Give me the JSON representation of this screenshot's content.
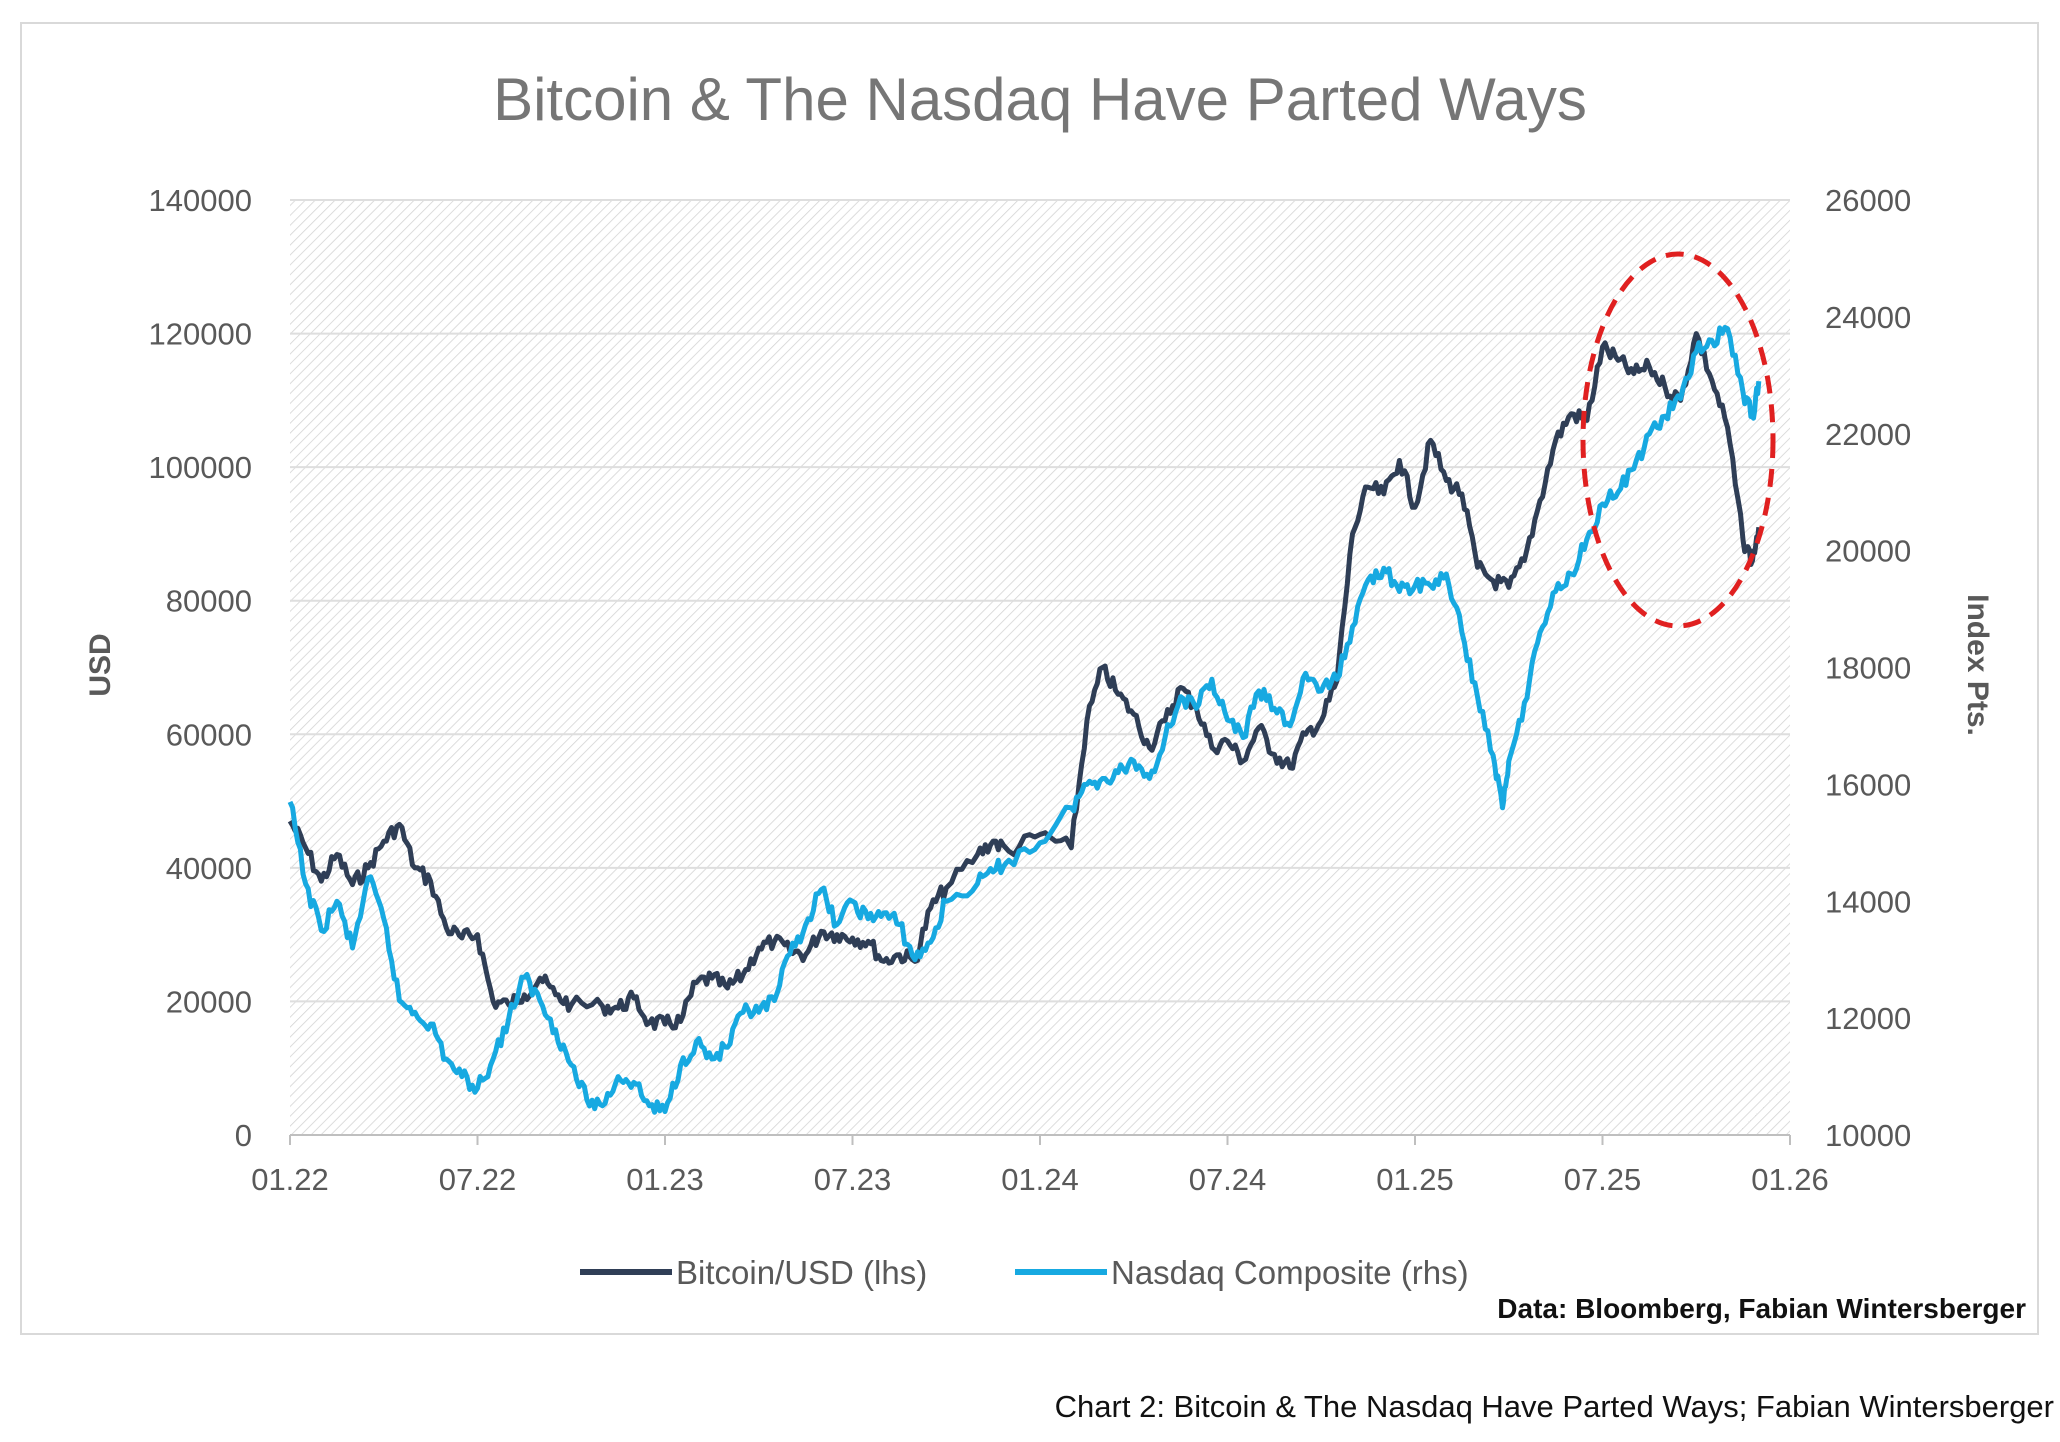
{
  "chart_data": {
    "type": "line",
    "title": "Bitcoin & The Nasdaq Have Parted Ways",
    "xlabel": "",
    "ylabel_left": "USD",
    "ylabel_right": "Index Pts.",
    "ylim_left": [
      0,
      140000
    ],
    "ylim_right": [
      10000,
      26000
    ],
    "yticks_left": [
      "0",
      "20000",
      "40000",
      "60000",
      "80000",
      "100000",
      "120000",
      "140000"
    ],
    "yticks_right": [
      "10000",
      "12000",
      "14000",
      "16000",
      "18000",
      "20000",
      "22000",
      "24000",
      "26000"
    ],
    "xticks": [
      "01.22",
      "07.22",
      "01.23",
      "07.23",
      "01.24",
      "07.24",
      "01.25",
      "07.25",
      "01.26"
    ],
    "xlim_months": [
      0,
      48
    ],
    "x_unit": "months since Jan 2022",
    "grid": true,
    "legend_position": "bottom",
    "source": "Data: Bloomberg, Fabian Wintersberger",
    "annotation": "red dashed ellipse highlighting late-2025 divergence",
    "series": [
      {
        "name": "Bitcoin/USD (lhs)",
        "axis": "left",
        "color": "#2f3e56",
        "points": [
          [
            0,
            47000
          ],
          [
            0.5,
            43000
          ],
          [
            1,
            38000
          ],
          [
            1.5,
            42000
          ],
          [
            2,
            37500
          ],
          [
            2.5,
            40000
          ],
          [
            3,
            44000
          ],
          [
            3.5,
            46500
          ],
          [
            4,
            40000
          ],
          [
            4.5,
            38000
          ],
          [
            5,
            31000
          ],
          [
            5.5,
            29500
          ],
          [
            6,
            30000
          ],
          [
            6.5,
            20000
          ],
          [
            7,
            19500
          ],
          [
            7.5,
            21000
          ],
          [
            8,
            23500
          ],
          [
            8.5,
            21000
          ],
          [
            9,
            19500
          ],
          [
            10,
            19300
          ],
          [
            10.5,
            19000
          ],
          [
            11,
            20500
          ],
          [
            11.5,
            16800
          ],
          [
            12,
            16600
          ],
          [
            12.5,
            17000
          ],
          [
            13,
            22800
          ],
          [
            13.5,
            23500
          ],
          [
            14,
            22000
          ],
          [
            14.5,
            24000
          ],
          [
            15,
            28000
          ],
          [
            15.5,
            29000
          ],
          [
            16,
            27500
          ],
          [
            16.5,
            27000
          ],
          [
            17,
            30500
          ],
          [
            17.5,
            30000
          ],
          [
            18,
            29500
          ],
          [
            18.5,
            29000
          ],
          [
            19,
            26000
          ],
          [
            19.5,
            27000
          ],
          [
            20,
            26000
          ],
          [
            20.5,
            34000
          ],
          [
            21,
            37000
          ],
          [
            22,
            42000
          ],
          [
            22.5,
            44000
          ],
          [
            23,
            42500
          ],
          [
            24,
            45000
          ],
          [
            25,
            43000
          ],
          [
            25.5,
            62000
          ],
          [
            26,
            70000
          ],
          [
            26.5,
            66000
          ],
          [
            27,
            63000
          ],
          [
            27.5,
            58000
          ],
          [
            28,
            62000
          ],
          [
            28.5,
            67000
          ],
          [
            29,
            64000
          ],
          [
            29.5,
            58000
          ],
          [
            30,
            59000
          ],
          [
            30.5,
            56000
          ],
          [
            31,
            61000
          ],
          [
            31.5,
            57000
          ],
          [
            32,
            55000
          ],
          [
            32.5,
            60000
          ],
          [
            33,
            62000
          ],
          [
            33.5,
            68000
          ],
          [
            34,
            90000
          ],
          [
            34.5,
            97000
          ],
          [
            35,
            96000
          ],
          [
            35.5,
            101000
          ],
          [
            36,
            94000
          ],
          [
            36.5,
            104000
          ],
          [
            37,
            98000
          ],
          [
            37.5,
            96000
          ],
          [
            38,
            85000
          ],
          [
            38.5,
            83000
          ],
          [
            39,
            82000
          ],
          [
            39.5,
            86000
          ],
          [
            40,
            95000
          ],
          [
            40.5,
            104000
          ],
          [
            41,
            108000
          ],
          [
            41.5,
            107000
          ],
          [
            42,
            118000
          ],
          [
            42.5,
            116000
          ],
          [
            43,
            114000
          ],
          [
            43.5,
            115000
          ],
          [
            44,
            112000
          ],
          [
            44.5,
            110000
          ],
          [
            45,
            120000
          ],
          [
            45.5,
            113000
          ],
          [
            46,
            106000
          ],
          [
            46.5,
            89000
          ],
          [
            46.8,
            86000
          ],
          [
            47,
            91000
          ]
        ]
      },
      {
        "name": "Nasdaq Composite (rhs)",
        "axis": "right",
        "color": "#17a9e1",
        "points": [
          [
            0,
            15700
          ],
          [
            0.5,
            14300
          ],
          [
            1,
            13500
          ],
          [
            1.5,
            14000
          ],
          [
            2,
            13200
          ],
          [
            2.5,
            14400
          ],
          [
            3,
            13700
          ],
          [
            3.5,
            12300
          ],
          [
            4,
            12100
          ],
          [
            4.5,
            11900
          ],
          [
            5,
            11300
          ],
          [
            5.5,
            11000
          ],
          [
            6,
            10800
          ],
          [
            6.5,
            11300
          ],
          [
            7,
            12000
          ],
          [
            7.5,
            12700
          ],
          [
            8,
            12300
          ],
          [
            8.5,
            11800
          ],
          [
            9,
            11200
          ],
          [
            9.5,
            10600
          ],
          [
            10,
            10500
          ],
          [
            10.5,
            11000
          ],
          [
            11,
            10900
          ],
          [
            11.5,
            10500
          ],
          [
            12,
            10400
          ],
          [
            12.5,
            11200
          ],
          [
            13,
            11600
          ],
          [
            13.5,
            11300
          ],
          [
            14,
            11500
          ],
          [
            14.5,
            12100
          ],
          [
            15,
            12100
          ],
          [
            15.5,
            12300
          ],
          [
            16,
            13100
          ],
          [
            16.5,
            13600
          ],
          [
            17,
            14200
          ],
          [
            17.5,
            13600
          ],
          [
            18,
            14000
          ],
          [
            18.5,
            13700
          ],
          [
            19,
            13800
          ],
          [
            19.5,
            13600
          ],
          [
            20,
            13000
          ],
          [
            20.5,
            13300
          ],
          [
            21,
            14000
          ],
          [
            22,
            14300
          ],
          [
            22.5,
            14500
          ],
          [
            23,
            14700
          ],
          [
            24,
            15000
          ],
          [
            25,
            15600
          ],
          [
            25.5,
            16000
          ],
          [
            26,
            16100
          ],
          [
            26.5,
            16200
          ],
          [
            27,
            16400
          ],
          [
            27.5,
            16100
          ],
          [
            28,
            16800
          ],
          [
            28.5,
            17500
          ],
          [
            29,
            17300
          ],
          [
            29.5,
            17800
          ],
          [
            30,
            17100
          ],
          [
            30.5,
            16800
          ],
          [
            31,
            17600
          ],
          [
            31.5,
            17300
          ],
          [
            32,
            17000
          ],
          [
            32.5,
            17900
          ],
          [
            33,
            17600
          ],
          [
            33.5,
            17800
          ],
          [
            34,
            18700
          ],
          [
            34.5,
            19500
          ],
          [
            35,
            19700
          ],
          [
            35.5,
            19300
          ],
          [
            36,
            19400
          ],
          [
            36.5,
            19400
          ],
          [
            37,
            19600
          ],
          [
            37.5,
            18600
          ],
          [
            38,
            17500
          ],
          [
            38.5,
            16500
          ],
          [
            38.8,
            15600
          ],
          [
            39,
            16400
          ],
          [
            39.5,
            17400
          ],
          [
            40,
            18600
          ],
          [
            40.5,
            19300
          ],
          [
            41,
            19600
          ],
          [
            41.5,
            20200
          ],
          [
            42,
            20800
          ],
          [
            42.5,
            21000
          ],
          [
            43,
            21400
          ],
          [
            43.5,
            22000
          ],
          [
            44,
            22300
          ],
          [
            44.5,
            22600
          ],
          [
            45,
            23400
          ],
          [
            45.5,
            23600
          ],
          [
            46,
            23800
          ],
          [
            46.5,
            22700
          ],
          [
            46.8,
            22300
          ],
          [
            47,
            22900
          ]
        ]
      }
    ]
  },
  "legend": [
    {
      "label": "Bitcoin/USD (lhs)",
      "color": "#2f3e56"
    },
    {
      "label": "Nasdaq Composite (rhs)",
      "color": "#17a9e1"
    }
  ],
  "source_note": "Data: Bloomberg, Fabian Wintersberger",
  "caption": "Chart 2: Bitcoin & The Nasdaq Have Parted Ways; Fabian Wintersberger",
  "colors": {
    "grid": "#dedede",
    "axis_text": "#595959",
    "title": "#767676",
    "annotation": "#e02020"
  }
}
